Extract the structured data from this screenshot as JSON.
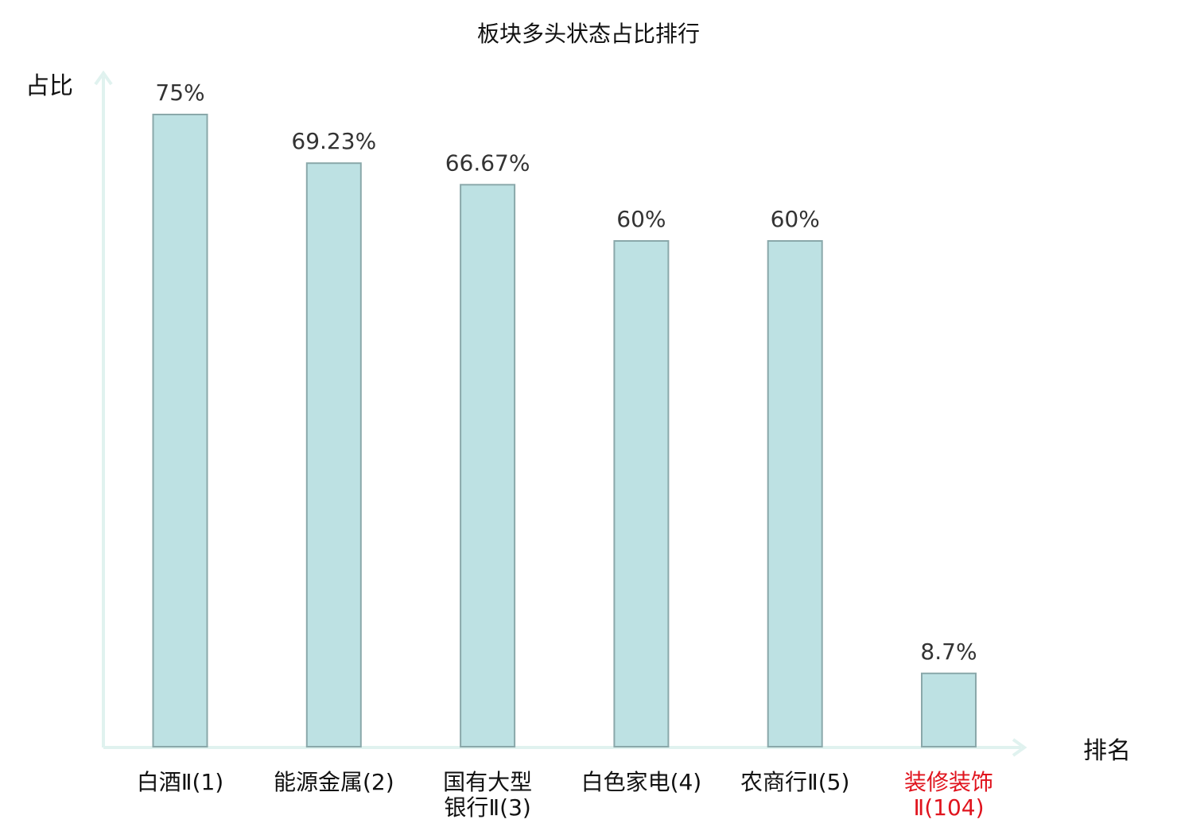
{
  "chart_data": {
    "type": "bar",
    "title": "板块多头状态占比排行",
    "ylabel": "占比",
    "xlabel": "排名",
    "ylim": [
      0,
      80
    ],
    "grid": false,
    "legend": "none",
    "categories": [
      {
        "lines": [
          "白酒",
          "Ⅱ(1)"
        ],
        "highlight": false
      },
      {
        "lines": [
          "能源金属",
          "(2)"
        ],
        "highlight": false
      },
      {
        "lines": [
          "国有大型",
          "银行Ⅱ(3)"
        ],
        "highlight": false
      },
      {
        "lines": [
          "白色家电",
          "(4)"
        ],
        "highlight": false
      },
      {
        "lines": [
          "农商行",
          "Ⅱ(5)"
        ],
        "highlight": false
      },
      {
        "lines": [
          "装修装饰",
          "Ⅱ(104)"
        ],
        "highlight": true
      }
    ],
    "values": [
      75,
      69.23,
      66.67,
      60,
      60,
      8.7
    ],
    "value_labels": [
      "75%",
      "69.23%",
      "66.67%",
      "60%",
      "60%",
      "8.7%"
    ],
    "colors": {
      "bar_fill": "#bde1e3",
      "bar_stroke": "#8aa8aa",
      "axis": "#e0f2ef",
      "label_default": "#111111",
      "label_highlight": "#e0141e"
    }
  }
}
